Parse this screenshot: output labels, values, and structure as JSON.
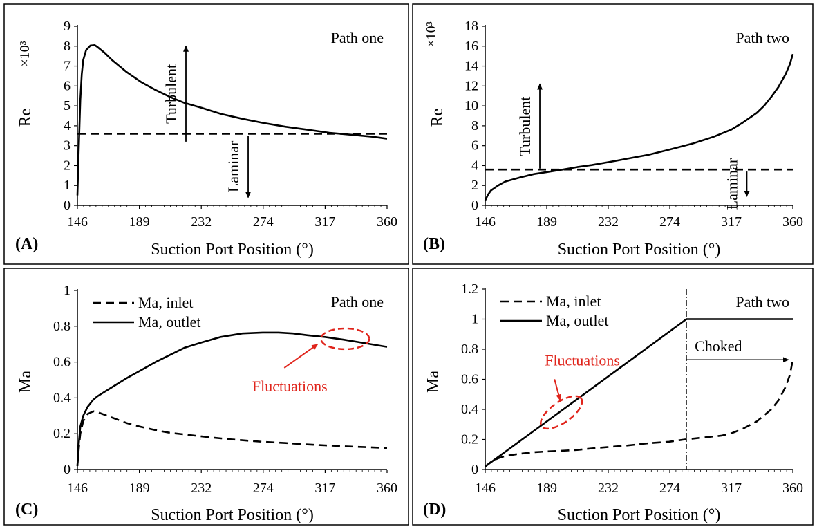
{
  "colors": {
    "line": "#000000",
    "annotation": "#e0241b",
    "background": "#ffffff"
  },
  "chart_data": [
    {
      "panel": "A",
      "type": "line",
      "panel_label": "(A)",
      "path_label": "Path one",
      "xlabel": "Suction Port Position (°)",
      "ylabel": "Re",
      "y_multiplier": "×10³",
      "x_ticks": [
        "146",
        "189",
        "232",
        "274",
        "317",
        "360"
      ],
      "y_ticks": [
        "0",
        "1",
        "2",
        "3",
        "4",
        "5",
        "6",
        "7",
        "8",
        "9"
      ],
      "xlim": [
        146,
        360
      ],
      "ylim": [
        0,
        9
      ],
      "grid": false,
      "series": [
        {
          "style": "solid",
          "x": [
            146,
            147,
            148,
            149,
            150,
            152,
            155,
            158,
            160,
            165,
            170,
            180,
            190,
            200,
            210,
            220,
            232,
            245,
            260,
            274,
            290,
            305,
            320,
            335,
            350,
            360
          ],
          "y": [
            0.5,
            3.0,
            5.3,
            6.6,
            7.3,
            7.8,
            8.03,
            8.05,
            7.95,
            7.65,
            7.3,
            6.7,
            6.2,
            5.8,
            5.45,
            5.15,
            4.9,
            4.6,
            4.35,
            4.15,
            3.95,
            3.8,
            3.65,
            3.55,
            3.45,
            3.35
          ]
        },
        {
          "style": "dashed",
          "x": [
            146,
            360
          ],
          "y": [
            3.6,
            3.6
          ]
        }
      ],
      "annotations": [
        {
          "text": "Turbulent",
          "arrow": "up",
          "x": 221,
          "y_from": 3.2,
          "y_to": 8.0
        },
        {
          "text": "Laminar",
          "arrow": "down",
          "x": 264,
          "y_from": 3.5,
          "y_to": 0.4
        }
      ]
    },
    {
      "panel": "B",
      "type": "line",
      "panel_label": "(B)",
      "path_label": "Path two",
      "xlabel": "Suction Port Position (°)",
      "ylabel": "Re",
      "y_multiplier": "×10³",
      "x_ticks": [
        "146",
        "189",
        "232",
        "274",
        "317",
        "360"
      ],
      "y_ticks": [
        "0",
        "2",
        "4",
        "6",
        "8",
        "10",
        "12",
        "14",
        "16",
        "18"
      ],
      "xlim": [
        146,
        360
      ],
      "ylim": [
        0,
        18
      ],
      "grid": false,
      "series": [
        {
          "style": "solid",
          "x": [
            146,
            148,
            150,
            155,
            160,
            170,
            180,
            189,
            200,
            210,
            220,
            232,
            245,
            260,
            274,
            290,
            305,
            317,
            325,
            335,
            340,
            345,
            350,
            355,
            358,
            360
          ],
          "y": [
            0.5,
            1.1,
            1.5,
            2.0,
            2.4,
            2.8,
            3.15,
            3.35,
            3.6,
            3.85,
            4.05,
            4.35,
            4.7,
            5.1,
            5.6,
            6.2,
            6.9,
            7.6,
            8.3,
            9.3,
            10.0,
            10.9,
            11.9,
            13.2,
            14.2,
            15.2
          ]
        },
        {
          "style": "dashed",
          "x": [
            146,
            360
          ],
          "y": [
            3.6,
            3.6
          ]
        }
      ],
      "annotations": [
        {
          "text": "Turbulent",
          "arrow": "up",
          "x": 184,
          "y_from": 3.7,
          "y_to": 12.2
        },
        {
          "text": "Laminar",
          "arrow": "down",
          "x": 328,
          "y_from": 3.4,
          "y_to": 0.9
        }
      ]
    },
    {
      "panel": "C",
      "type": "line",
      "panel_label": "(C)",
      "path_label": "Path one",
      "xlabel": "Suction Port Position (°)",
      "ylabel": "Ma",
      "x_ticks": [
        "146",
        "189",
        "232",
        "274",
        "317",
        "360"
      ],
      "y_ticks": [
        "0",
        "0.2",
        "0.4",
        "0.6",
        "0.8",
        "1"
      ],
      "xlim": [
        146,
        360
      ],
      "ylim": [
        0,
        1
      ],
      "grid": false,
      "legend": [
        "Ma, inlet",
        "Ma, outlet"
      ],
      "legend_position": "top-left",
      "series": [
        {
          "name": "Ma, inlet",
          "style": "dashed",
          "x": [
            146,
            147,
            148,
            150,
            153,
            157,
            160,
            170,
            180,
            189,
            200,
            210,
            232,
            250,
            274,
            290,
            305,
            317,
            330,
            345,
            360
          ],
          "y": [
            0.02,
            0.12,
            0.2,
            0.27,
            0.31,
            0.325,
            0.32,
            0.29,
            0.26,
            0.24,
            0.22,
            0.205,
            0.185,
            0.17,
            0.155,
            0.148,
            0.14,
            0.135,
            0.13,
            0.125,
            0.12
          ]
        },
        {
          "name": "Ma, outlet",
          "style": "solid",
          "x": [
            146,
            147,
            148,
            150,
            153,
            157,
            160,
            170,
            180,
            189,
            200,
            210,
            220,
            232,
            245,
            260,
            274,
            285,
            295,
            305,
            317,
            330,
            345,
            360
          ],
          "y": [
            0.02,
            0.15,
            0.24,
            0.3,
            0.35,
            0.39,
            0.41,
            0.46,
            0.51,
            0.55,
            0.6,
            0.64,
            0.68,
            0.71,
            0.74,
            0.76,
            0.765,
            0.765,
            0.76,
            0.75,
            0.74,
            0.725,
            0.705,
            0.685
          ]
        }
      ],
      "annotations": [
        {
          "text": "Fluctuations",
          "marker": "ellipse",
          "x": 331,
          "y": 0.73
        }
      ]
    },
    {
      "panel": "D",
      "type": "line",
      "panel_label": "(D)",
      "path_label": "Path two",
      "xlabel": "Suction Port Position (°)",
      "ylabel": "Ma",
      "x_ticks": [
        "146",
        "189",
        "232",
        "274",
        "317",
        "360"
      ],
      "y_ticks": [
        "0",
        "0.2",
        "0.4",
        "0.6",
        "0.8",
        "1",
        "1.2"
      ],
      "xlim": [
        146,
        360
      ],
      "ylim": [
        0,
        1.2
      ],
      "grid": false,
      "legend": [
        "Ma, inlet",
        "Ma, outlet"
      ],
      "legend_position": "top-left",
      "series": [
        {
          "name": "Ma, inlet",
          "style": "dashed",
          "x": [
            146,
            150,
            155,
            160,
            170,
            180,
            189,
            200,
            210,
            220,
            232,
            245,
            260,
            274,
            285,
            290,
            300,
            310,
            317,
            325,
            335,
            345,
            350,
            355,
            358,
            360
          ],
          "y": [
            0.02,
            0.05,
            0.075,
            0.09,
            0.105,
            0.115,
            0.12,
            0.125,
            0.13,
            0.14,
            0.15,
            0.16,
            0.175,
            0.185,
            0.2,
            0.205,
            0.215,
            0.225,
            0.24,
            0.27,
            0.32,
            0.4,
            0.46,
            0.55,
            0.63,
            0.73
          ]
        },
        {
          "name": "Ma, outlet",
          "style": "solid",
          "x": [
            146,
            286,
            286,
            360
          ],
          "y": [
            0.02,
            1.0,
            1.0,
            1.0
          ]
        }
      ],
      "annotations": [
        {
          "text": "Fluctuations",
          "marker": "ellipse",
          "x": 199,
          "y": 0.38
        },
        {
          "text": "Choked",
          "arrow": "right",
          "x_from": 286,
          "x_to": 357,
          "y": 0.73
        }
      ],
      "vline": 286
    }
  ]
}
